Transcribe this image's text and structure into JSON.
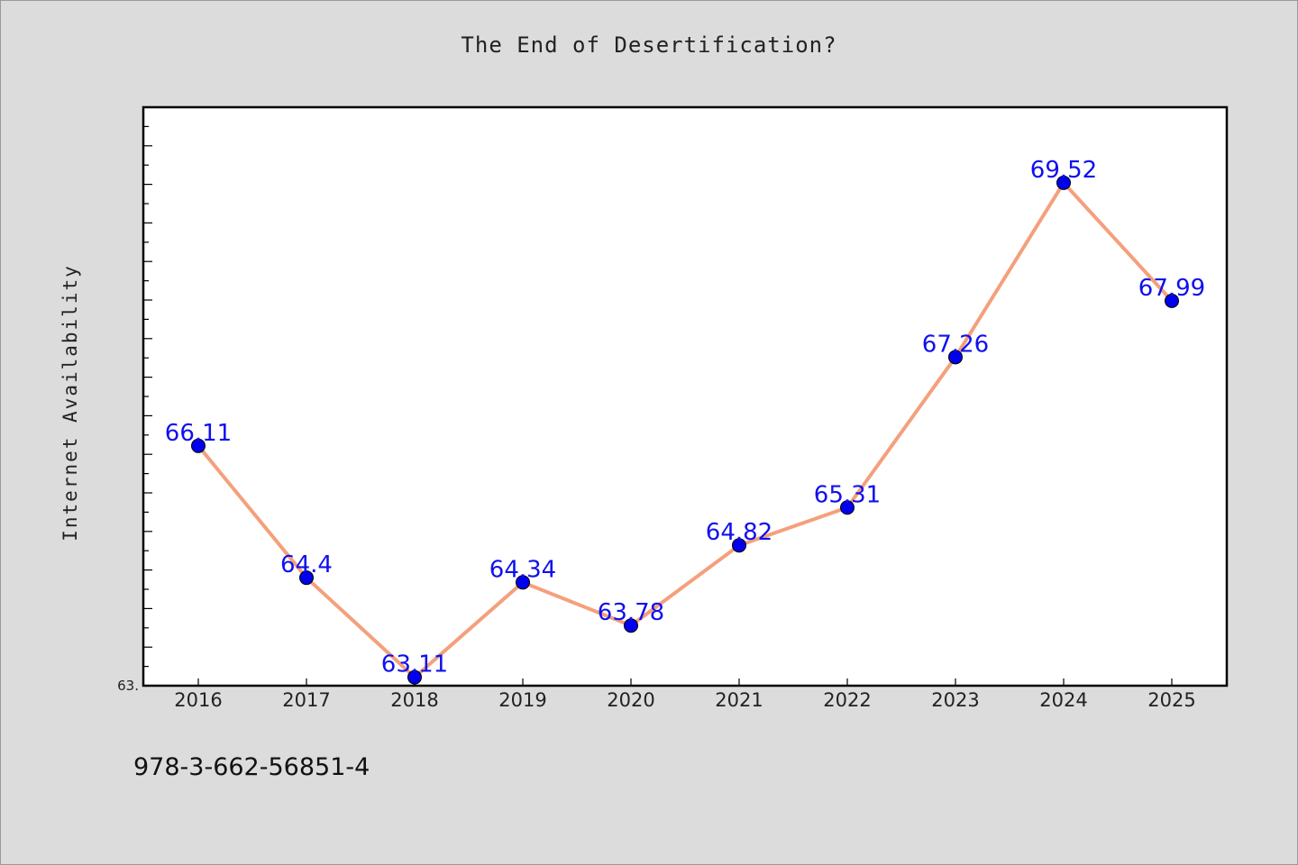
{
  "title": "The End of Desertification?",
  "footer_text": "978-3-662-56851-4",
  "chart_data": {
    "type": "line",
    "title": "The End of Desertification?",
    "xlabel": "",
    "ylabel": "Internet Availability",
    "categories": [
      "2016",
      "2017",
      "2018",
      "2019",
      "2020",
      "2021",
      "2022",
      "2023",
      "2024",
      "2025"
    ],
    "series": [
      {
        "values": [
          66.11,
          64.4,
          63.11,
          64.34,
          63.78,
          64.82,
          65.31,
          67.26,
          69.52,
          67.99
        ]
      }
    ],
    "data_labels": [
      "66.11",
      "64.4",
      "63.11",
      "64.34",
      "63.78",
      "64.82",
      "65.31",
      "67.26",
      "69.52",
      "67.99"
    ],
    "y_min_label": "63.",
    "ylim": [
      63.0,
      70.5
    ],
    "grid": false,
    "legend": "none",
    "colors": {
      "line": "#f4a07c",
      "marker": "#0000ee",
      "label": "#1010ee",
      "plot_background": "#ffffff",
      "page_background": "#dcdcdc"
    }
  }
}
